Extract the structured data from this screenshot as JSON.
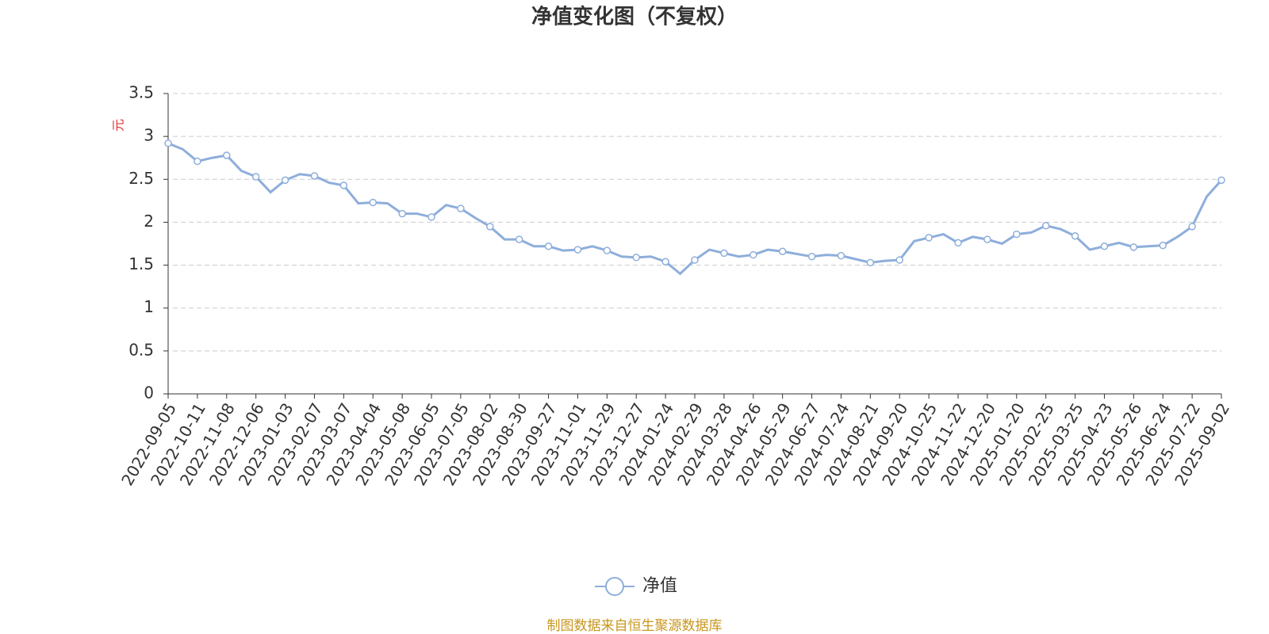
{
  "chart_data": {
    "type": "line",
    "title": "净值变化图（不复权）",
    "y_label": "元",
    "source": "制图数据来自恒生聚源数据库",
    "categories": [
      "2022-09-05",
      null,
      "2022-10-11",
      null,
      "2022-11-08",
      null,
      "2022-12-06",
      null,
      "2023-01-03",
      null,
      "2023-02-07",
      null,
      "2023-03-07",
      null,
      "2023-04-04",
      null,
      "2023-05-08",
      null,
      "2023-06-05",
      null,
      "2023-07-05",
      null,
      "2023-08-02",
      null,
      "2023-08-30",
      null,
      "2023-09-27",
      null,
      "2023-11-01",
      null,
      "2023-11-29",
      null,
      "2023-12-27",
      null,
      "2024-01-24",
      null,
      "2024-02-29",
      null,
      "2024-03-28",
      null,
      "2024-04-26",
      null,
      "2024-05-29",
      null,
      "2024-06-27",
      null,
      "2024-07-24",
      null,
      "2024-08-21",
      null,
      "2024-09-20",
      null,
      "2024-10-25",
      null,
      "2024-11-22",
      null,
      "2024-12-20",
      null,
      "2025-01-20",
      null,
      "2025-02-25",
      null,
      "2025-03-25",
      null,
      "2025-04-23",
      null,
      "2025-05-26",
      null,
      "2025-06-24",
      null,
      "2025-07-22",
      null,
      "2025-09-02"
    ],
    "series": [
      {
        "name": "净值",
        "color": "#8eaedb",
        "values": [
          2.92,
          2.85,
          2.71,
          2.75,
          2.78,
          2.6,
          2.53,
          2.35,
          2.49,
          2.56,
          2.54,
          2.46,
          2.43,
          2.22,
          2.23,
          2.22,
          2.1,
          2.1,
          2.06,
          2.2,
          2.16,
          2.05,
          1.95,
          1.8,
          1.8,
          1.72,
          1.72,
          1.67,
          1.68,
          1.72,
          1.67,
          1.6,
          1.59,
          1.6,
          1.54,
          1.4,
          1.56,
          1.68,
          1.64,
          1.6,
          1.62,
          1.68,
          1.66,
          1.63,
          1.6,
          1.62,
          1.61,
          1.57,
          1.53,
          1.55,
          1.56,
          1.78,
          1.82,
          1.86,
          1.76,
          1.83,
          1.8,
          1.75,
          1.86,
          1.88,
          1.96,
          1.92,
          1.84,
          1.68,
          1.72,
          1.76,
          1.71,
          1.72,
          1.73,
          1.83,
          1.95,
          2.3,
          2.49
        ]
      }
    ],
    "ylim": [
      0,
      3.5
    ],
    "yticks": [
      0,
      0.5,
      1,
      1.5,
      2,
      2.5,
      3,
      3.5
    ],
    "grid": true,
    "legend": "bottom"
  }
}
